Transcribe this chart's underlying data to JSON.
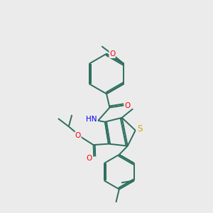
{
  "background_color": "#ebebeb",
  "bond_color": "#2d6e5e",
  "atom_colors": {
    "O": "#ff0000",
    "N": "#0000ff",
    "S": "#ccaa00",
    "C": "#2d6e5e",
    "H": "#2d6e5e"
  }
}
